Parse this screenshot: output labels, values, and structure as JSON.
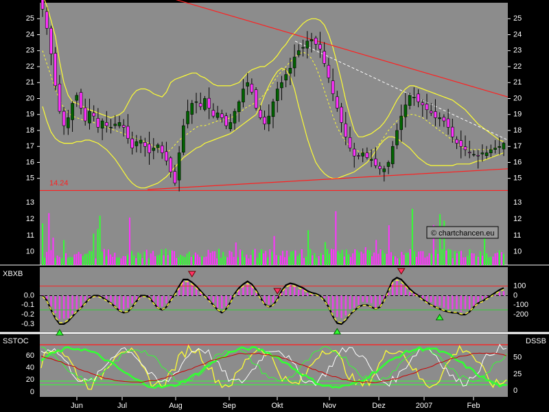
{
  "chart_data": {
    "type": "candlestick",
    "x_labels": [
      "Jun",
      "Jul",
      "Aug",
      "Sep",
      "Okt",
      "Nov",
      "Dez",
      "2007",
      "Feb"
    ],
    "price_panel": {
      "y_ticks": [
        15,
        16,
        17,
        18,
        19,
        20,
        21,
        22,
        23,
        24,
        25
      ],
      "ylim": [
        14,
        26
      ],
      "support_label": "14.24",
      "support_level": 14.24,
      "close": [
        25.6,
        24.4,
        22.8,
        20.8,
        19.2,
        18.3,
        18.8,
        19.7,
        20.2,
        19.4,
        18.6,
        19.2,
        18.9,
        18.2,
        18.6,
        18.3,
        18.2,
        18.4,
        18.5,
        18.2,
        17.5,
        16.9,
        17.3,
        17.4,
        17.0,
        16.6,
        16.9,
        17.1,
        16.6,
        16.1,
        15.4,
        14.7,
        16.6,
        18.3,
        19.2,
        19.7,
        19.8,
        19.5,
        20.0,
        19.4,
        18.9,
        19.1,
        18.8,
        18.3,
        18.5,
        19.2,
        19.8,
        20.6,
        21.0,
        20.4,
        19.4,
        18.8,
        18.4,
        18.9,
        19.8,
        20.6,
        21.0,
        21.5,
        21.9,
        22.6,
        23.0,
        23.2,
        23.6,
        23.7,
        23.4,
        23.1,
        22.2,
        21.3,
        20.3,
        19.4,
        18.5,
        17.6,
        16.9,
        16.4,
        16.4,
        16.6,
        16.3,
        16.2,
        15.8,
        15.6,
        15.6,
        16.0,
        17.0,
        18.0,
        18.9,
        19.6,
        20.2,
        20.1,
        19.8,
        19.6,
        19.3,
        19.1,
        18.8,
        18.8,
        18.6,
        18.2,
        17.6,
        17.2,
        17.0,
        16.8,
        16.6,
        16.5,
        16.4,
        16.6,
        16.6,
        16.8,
        16.9,
        17.0,
        17.2
      ],
      "bollinger_upper": [
        26.5,
        25.8,
        24.9,
        23.9,
        22.3,
        21.0,
        20.2,
        19.8,
        19.7,
        19.6,
        19.4,
        19.3,
        19.2,
        19.1,
        19.0,
        18.9,
        18.8,
        18.9,
        19.0,
        19.2,
        19.7,
        20.2,
        20.5,
        20.6,
        20.6,
        20.5,
        20.3,
        20.2,
        20.1,
        20.4,
        21.0,
        21.2,
        21.3,
        21.4,
        21.5,
        21.6,
        21.6,
        21.4,
        21.3,
        21.1,
        20.9,
        20.8,
        20.8,
        20.8,
        20.8,
        20.9,
        21.0,
        21.3,
        21.6,
        21.8,
        21.9,
        22.0,
        22.0,
        22.2,
        22.4,
        22.7,
        23.1,
        23.4,
        23.8,
        24.1,
        24.4,
        24.7,
        24.9,
        25.0,
        25.0,
        24.9,
        24.6,
        24.0,
        23.2,
        22.2,
        21.1,
        19.9,
        18.9,
        18.0,
        17.6,
        17.6,
        17.7,
        17.8,
        18.0,
        18.2,
        18.5,
        18.9,
        19.4,
        19.9,
        20.3,
        20.6,
        20.8,
        20.8,
        20.7,
        20.6,
        20.5,
        20.4,
        20.3,
        20.2,
        20.1,
        20.0,
        19.9,
        19.7,
        19.5,
        19.3,
        19.0,
        18.7,
        18.4,
        18.2,
        18.0,
        17.8,
        17.6,
        17.4,
        17.3
      ],
      "bollinger_mid": [
        23.0,
        22.2,
        21.4,
        20.6,
        19.9,
        19.4,
        19.1,
        18.9,
        18.8,
        18.7,
        18.6,
        18.6,
        18.5,
        18.4,
        18.3,
        18.2,
        18.1,
        18.0,
        17.9,
        17.8,
        17.7,
        17.6,
        17.5,
        17.4,
        17.3,
        17.2,
        17.0,
        16.9,
        16.7,
        16.6,
        16.8,
        17.1,
        17.4,
        17.6,
        17.8,
        18.0,
        18.2,
        18.3,
        18.3,
        18.4,
        18.5,
        18.6,
        18.6,
        18.7,
        18.8,
        18.9,
        19.1,
        19.3,
        19.5,
        19.6,
        19.8,
        20.0,
        20.3,
        20.6,
        21.0,
        21.4,
        21.7,
        22.0,
        22.3,
        22.6,
        22.8,
        22.9,
        22.8,
        22.5,
        22.0,
        21.3,
        20.5,
        19.7,
        18.9,
        18.2,
        17.7,
        17.3,
        17.0,
        16.8,
        16.7,
        16.6,
        16.6,
        16.7,
        16.9,
        17.2,
        17.6,
        18.0,
        18.3,
        18.6,
        18.8,
        18.9,
        19.0,
        19.0,
        18.9,
        18.8,
        18.6,
        18.4,
        18.2,
        18.0,
        17.8,
        17.6,
        17.4,
        17.2,
        17.0,
        16.9,
        16.8,
        16.8,
        16.8,
        16.8,
        16.8,
        16.8,
        16.9,
        17.0,
        17.0
      ],
      "bollinger_lower": [
        19.5,
        18.6,
        17.9,
        17.5,
        17.3,
        17.2,
        17.2,
        17.2,
        17.3,
        17.3,
        17.4,
        17.4,
        17.3,
        17.2,
        17.0,
        16.8,
        16.5,
        16.2,
        15.8,
        15.4,
        15.0,
        14.7,
        14.5,
        14.4,
        14.4,
        14.5,
        14.6,
        14.7,
        14.9,
        15.1,
        15.4,
        15.7,
        16.0,
        16.3,
        16.5,
        16.7,
        16.9,
        17.0,
        17.2,
        17.3,
        17.4,
        17.5,
        17.6,
        17.7,
        17.8,
        18.0,
        18.2,
        18.4,
        18.6,
        18.8,
        19.0,
        19.5,
        20.2,
        20.8,
        21.3,
        21.7,
        21.9,
        21.8,
        21.4,
        20.6,
        19.5,
        18.5,
        17.5,
        16.7,
        16.0,
        15.6,
        15.3,
        15.1,
        15.0,
        15.0,
        15.1,
        15.2,
        15.3,
        15.4,
        15.6,
        15.8,
        16.0,
        16.3,
        16.7,
        17.1,
        17.4,
        17.6,
        17.6,
        17.5,
        17.3,
        17.1,
        16.9,
        16.6,
        16.3,
        16.1,
        15.9,
        15.8,
        15.8,
        15.8,
        15.8,
        15.8,
        15.8,
        15.9,
        15.9,
        15.9,
        15.9,
        16.0,
        16.1,
        16.1,
        16.2,
        16.3,
        16.4,
        16.5,
        16.6
      ],
      "resistance_line": {
        "from": 26.4,
        "to": 20.1
      },
      "support_line": {
        "from": 14.3,
        "to": 15.6
      },
      "dashed_trend": {
        "from": 23.6,
        "to": 17.4
      }
    },
    "volume_panel": {
      "y_ticks": [
        10,
        11,
        12,
        13
      ],
      "ylim": [
        9.2,
        13.5
      ]
    },
    "xbxb_panel": {
      "title": "XBXB",
      "left_ticks": [
        "0.0",
        "-0.1",
        "-0.2",
        "-0.3"
      ],
      "right_ticks": [
        "100",
        "0",
        "-100",
        "-200"
      ],
      "ylim": [
        -0.38,
        0.3
      ],
      "upper_level": 0.1,
      "lower_level": -0.15,
      "values": [
        0.0,
        -0.05,
        -0.15,
        -0.24,
        -0.3,
        -0.3,
        -0.27,
        -0.22,
        -0.17,
        -0.13,
        -0.08,
        -0.03,
        0.0,
        0.0,
        -0.02,
        -0.05,
        -0.08,
        -0.12,
        -0.16,
        -0.18,
        -0.17,
        -0.12,
        -0.06,
        0.0,
        0.0,
        -0.02,
        -0.08,
        -0.13,
        -0.15,
        -0.12,
        -0.05,
        0.02,
        0.1,
        0.17,
        0.17,
        0.14,
        0.1,
        0.05,
        0.0,
        -0.05,
        -0.1,
        -0.15,
        -0.18,
        -0.14,
        -0.07,
        0.02,
        0.08,
        0.12,
        0.15,
        0.12,
        0.06,
        -0.02,
        -0.09,
        -0.12,
        -0.1,
        -0.04,
        0.05,
        0.11,
        0.13,
        0.12,
        0.1,
        0.08,
        0.05,
        0.03,
        0.02,
        0.0,
        -0.05,
        -0.12,
        -0.22,
        -0.29,
        -0.3,
        -0.26,
        -0.2,
        -0.16,
        -0.12,
        -0.1,
        -0.1,
        -0.12,
        -0.14,
        -0.12,
        -0.05,
        0.06,
        0.16,
        0.19,
        0.17,
        0.12,
        0.07,
        0.03,
        0.0,
        -0.04,
        -0.07,
        -0.1,
        -0.12,
        -0.14,
        -0.16,
        -0.17,
        -0.18,
        -0.18,
        -0.2,
        -0.2,
        -0.17,
        -0.12,
        -0.08,
        -0.06,
        -0.03,
        0.0,
        0.03,
        0.06,
        0.08
      ],
      "up_markers_at": [
        4,
        69,
        93
      ],
      "down_markers_at": [
        35,
        55,
        84
      ]
    },
    "sstoc_panel": {
      "title": "SSTOC",
      "right_title": "DSSB",
      "left_ticks": [
        60,
        40,
        20,
        0
      ],
      "right_ticks": [
        50,
        25,
        0
      ],
      "ylim": [
        -8,
        95
      ],
      "upper_level": 78,
      "lower_levels": [
        18,
        12
      ]
    }
  }
}
